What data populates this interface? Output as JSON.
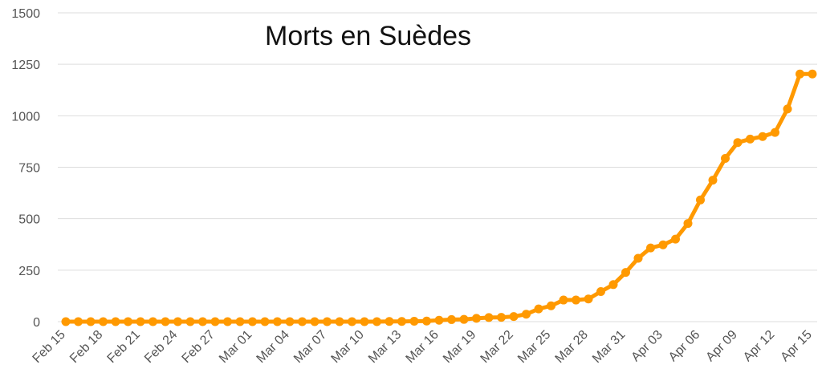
{
  "chart_data": {
    "type": "line",
    "title": "Morts en Suèdes",
    "xlabel": "",
    "ylabel": "",
    "ylim": [
      0,
      1500
    ],
    "yticks": [
      0,
      250,
      500,
      750,
      1000,
      1250,
      1500
    ],
    "ytick_labels": [
      "0",
      "250",
      "500",
      "750",
      "1000",
      "1250",
      "1500"
    ],
    "grid": true,
    "legend": "none",
    "line_color": "#FF9900",
    "x": [
      "Feb 15",
      "Feb 16",
      "Feb 17",
      "Feb 18",
      "Feb 19",
      "Feb 20",
      "Feb 21",
      "Feb 22",
      "Feb 23",
      "Feb 24",
      "Feb 25",
      "Feb 26",
      "Feb 27",
      "Feb 28",
      "Feb 29",
      "Mar 01",
      "Mar 02",
      "Mar 03",
      "Mar 04",
      "Mar 05",
      "Mar 06",
      "Mar 07",
      "Mar 08",
      "Mar 09",
      "Mar 10",
      "Mar 11",
      "Mar 12",
      "Mar 13",
      "Mar 14",
      "Mar 15",
      "Mar 16",
      "Mar 17",
      "Mar 18",
      "Mar 19",
      "Mar 20",
      "Mar 21",
      "Mar 22",
      "Mar 23",
      "Mar 24",
      "Mar 25",
      "Mar 26",
      "Mar 27",
      "Mar 28",
      "Mar 29",
      "Mar 30",
      "Mar 31",
      "Apr 01",
      "Apr 02",
      "Apr 03",
      "Apr 04",
      "Apr 05",
      "Apr 06",
      "Apr 07",
      "Apr 08",
      "Apr 09",
      "Apr 10",
      "Apr 11",
      "Apr 12",
      "Apr 13",
      "Apr 14",
      "Apr 15"
    ],
    "xtick_labels": [
      "Feb 15",
      "Feb 18",
      "Feb 21",
      "Feb 24",
      "Feb 27",
      "Mar 01",
      "Mar 04",
      "Mar 07",
      "Mar 10",
      "Mar 13",
      "Mar 16",
      "Mar 19",
      "Mar 22",
      "Mar 25",
      "Mar 28",
      "Mar 31",
      "Apr 03",
      "Apr 06",
      "Apr 09",
      "Apr 12",
      "Apr 15"
    ],
    "values": [
      0,
      0,
      0,
      0,
      0,
      0,
      0,
      0,
      0,
      0,
      0,
      0,
      0,
      0,
      0,
      0,
      0,
      0,
      0,
      0,
      0,
      0,
      0,
      0,
      0,
      0,
      1,
      1,
      2,
      3,
      7,
      10,
      11,
      16,
      20,
      21,
      25,
      36,
      62,
      77,
      105,
      105,
      110,
      146,
      180,
      239,
      308,
      358,
      373,
      401,
      477,
      591,
      687,
      793,
      870,
      887,
      899,
      919,
      1033,
      1203,
      1203
    ]
  }
}
